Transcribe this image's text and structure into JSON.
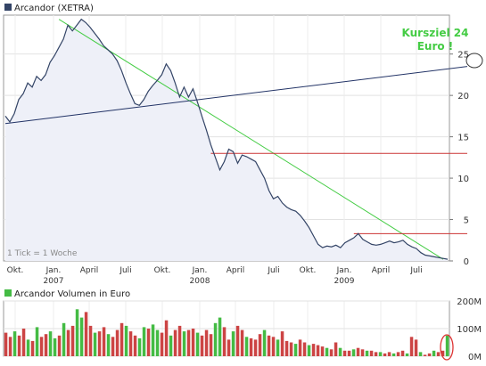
{
  "chart_data": [
    {
      "type": "line",
      "legend": "Arcandor (XETRA)",
      "tick_note": "1 Tick = 1 Woche",
      "annotation": [
        "Kursziel 24",
        "Euro !"
      ],
      "x_ticks": [
        {
          "label": "Okt.",
          "year": ""
        },
        {
          "label": "Jan.",
          "year": "2007"
        },
        {
          "label": "April",
          "year": ""
        },
        {
          "label": "Juli",
          "year": ""
        },
        {
          "label": "Okt.",
          "year": ""
        },
        {
          "label": "Jan.",
          "year": "2008"
        },
        {
          "label": "April",
          "year": ""
        },
        {
          "label": "Juli",
          "year": ""
        },
        {
          "label": "Okt.",
          "year": ""
        },
        {
          "label": "Jan.",
          "year": "2009"
        },
        {
          "label": "April",
          "year": ""
        },
        {
          "label": "Juli",
          "year": ""
        }
      ],
      "y_ticks": [
        "0",
        "5",
        "10",
        "15",
        "20",
        "25"
      ],
      "ylim": [
        0,
        29.7
      ],
      "grid": true,
      "colors": {
        "price": "#334466",
        "fill": "#eef0f8",
        "green": "#44cc44",
        "red": "#cc3333",
        "blue_line": "#223366",
        "annotation": "#44cc44"
      },
      "series": [
        {
          "values": [
            17.5,
            16.8,
            17.8,
            19.5,
            20.2,
            21.5,
            21.0,
            22.3,
            21.8,
            22.5,
            24.0,
            24.8,
            25.8,
            26.8,
            28.5,
            27.8,
            28.5,
            29.2,
            28.8,
            28.2,
            27.5,
            26.8,
            26.0,
            25.5,
            25.0,
            24.2,
            23.0,
            21.5,
            20.2,
            19.0,
            18.8,
            19.5,
            20.5,
            21.2,
            21.8,
            22.5,
            23.8,
            23.0,
            21.5,
            19.8,
            21.0,
            19.8,
            20.8,
            19.2,
            17.5,
            15.8,
            14.0,
            12.5,
            11.0,
            12.0,
            13.5,
            13.2,
            11.8,
            12.8,
            12.6,
            12.3,
            12.0,
            11.0,
            10.0,
            8.5,
            7.5,
            7.8,
            7.0,
            6.5,
            6.2,
            6.0,
            5.5,
            4.8,
            4.0,
            3.0,
            2.0,
            1.6,
            1.8,
            1.7,
            1.9,
            1.6,
            2.2,
            2.5,
            2.8,
            3.3,
            2.6,
            2.3,
            2.0,
            1.9,
            2.0,
            2.2,
            2.4,
            2.2,
            2.3,
            2.5,
            2.0,
            1.7,
            1.5,
            1.0,
            0.7,
            0.6,
            0.5,
            0.4,
            0.3,
            0.2
          ]
        }
      ],
      "trendlines": [
        {
          "color": "green",
          "from": [
            12,
            29.2
          ],
          "to": [
            98,
            0.2
          ]
        },
        {
          "color": "blue_line",
          "from": [
            0,
            16.6
          ],
          "to": [
            99,
            23.5
          ]
        },
        {
          "color": "red",
          "from": [
            46,
            13.0
          ],
          "to": [
            99,
            13.0
          ]
        },
        {
          "color": "red",
          "from": [
            78,
            3.3
          ],
          "to": [
            99,
            3.3
          ]
        }
      ]
    },
    {
      "type": "bar",
      "legend": "Arcandor Volumen in Euro",
      "y_ticks": [
        "0M",
        "100M",
        "200M"
      ],
      "ylim": [
        0,
        200
      ],
      "grid": true,
      "colors": {
        "up": "#44bb44",
        "down": "#cc4444"
      },
      "values": [
        85,
        70,
        90,
        75,
        100,
        60,
        55,
        105,
        70,
        80,
        90,
        65,
        75,
        120,
        95,
        110,
        170,
        140,
        160,
        110,
        85,
        90,
        105,
        80,
        70,
        95,
        120,
        110,
        90,
        75,
        65,
        105,
        100,
        115,
        95,
        85,
        130,
        75,
        95,
        110,
        90,
        95,
        100,
        85,
        75,
        95,
        80,
        120,
        140,
        105,
        60,
        90,
        110,
        95,
        70,
        65,
        60,
        80,
        95,
        75,
        70,
        60,
        90,
        55,
        50,
        45,
        60,
        50,
        40,
        45,
        40,
        35,
        30,
        25,
        50,
        30,
        20,
        20,
        25,
        30,
        25,
        20,
        20,
        15,
        15,
        10,
        15,
        10,
        15,
        20,
        10,
        70,
        60,
        15,
        5,
        10,
        20,
        15,
        20,
        75
      ],
      "up_down": [
        "d",
        "d",
        "u",
        "d",
        "d",
        "u",
        "d",
        "u",
        "d",
        "d",
        "u",
        "u",
        "d",
        "u",
        "d",
        "d",
        "u",
        "u",
        "d",
        "d",
        "u",
        "d",
        "d",
        "u",
        "d",
        "d",
        "d",
        "u",
        "d",
        "d",
        "u",
        "u",
        "d",
        "u",
        "u",
        "d",
        "d",
        "u",
        "d",
        "d",
        "u",
        "d",
        "d",
        "u",
        "d",
        "d",
        "d",
        "u",
        "u",
        "d",
        "d",
        "u",
        "d",
        "d",
        "u",
        "d",
        "d",
        "d",
        "u",
        "d",
        "d",
        "u",
        "d",
        "d",
        "d",
        "u",
        "d",
        "d",
        "u",
        "d",
        "d",
        "d",
        "u",
        "d",
        "d",
        "u",
        "d",
        "d",
        "u",
        "d",
        "d",
        "u",
        "d",
        "d",
        "u",
        "d",
        "d",
        "u",
        "d",
        "d",
        "u",
        "d",
        "d",
        "u",
        "d",
        "d",
        "u",
        "d",
        "d",
        "u"
      ]
    }
  ]
}
